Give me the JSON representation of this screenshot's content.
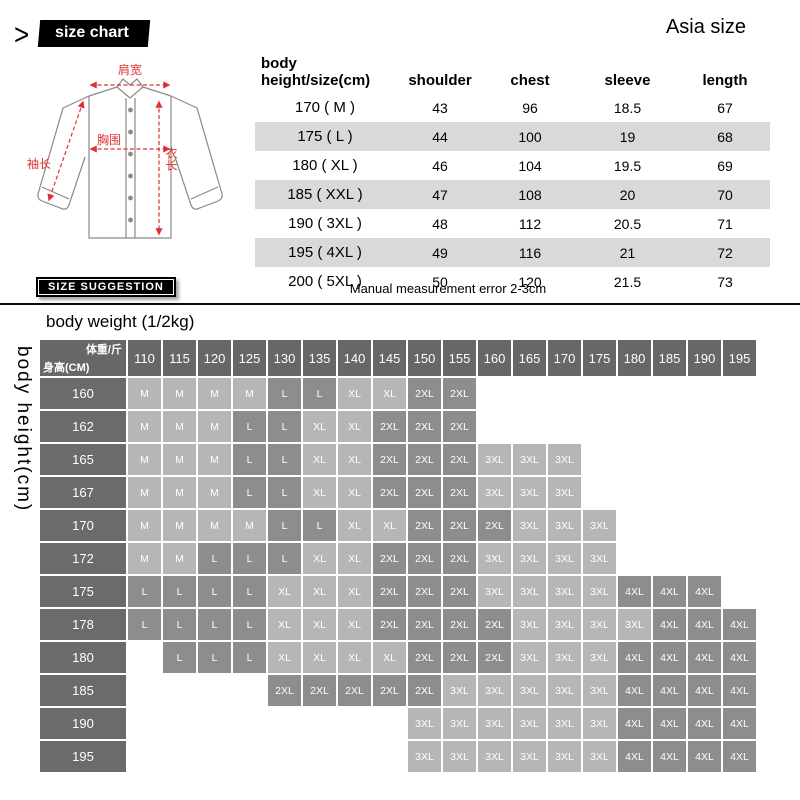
{
  "header": {
    "arrow_glyph": ">",
    "badge_label": "size chart",
    "region_label": "Asia size"
  },
  "shirt_labels": {
    "shoulder_width": "肩宽",
    "chest": "胸围",
    "garment_length": "衣长",
    "sleeve_length": "袖长"
  },
  "suggestion_badge_label": "SIZE SUGGESTION",
  "size_table_header": {
    "line1": "body",
    "line2": "height/size(cm)",
    "columns": [
      "shoulder",
      "chest",
      "sleeve",
      "length"
    ]
  },
  "weight_matrix_labels": {
    "section_title": "body weight (1/2kg)",
    "side_label": "body height(cm)",
    "corner_weight": "体重/斤",
    "corner_height": "身高(CM)"
  },
  "colors": {
    "accent_red": "#e03131",
    "matrix_header_gray": "#676767",
    "matrix_dark_cell": "#8d8d8d",
    "matrix_light_cell": "#b6b6b6",
    "table_stripe": "#d9d9d9",
    "badge_black": "#000000"
  },
  "chart_data": [
    {
      "type": "table",
      "title": "Asia size body measurements (cm)",
      "columns": [
        "body height/size(cm)",
        "shoulder",
        "chest",
        "sleeve",
        "length"
      ],
      "rows": [
        [
          "170 ( M )",
          43,
          96,
          18.5,
          67
        ],
        [
          "175 ( L )",
          44,
          100,
          19,
          68
        ],
        [
          "180 ( XL )",
          46,
          104,
          19.5,
          69
        ],
        [
          "185 ( XXL )",
          47,
          108,
          20,
          70
        ],
        [
          "190 ( 3XL )",
          48,
          112,
          20.5,
          71
        ],
        [
          "195 ( 4XL )",
          49,
          116,
          21,
          72
        ],
        [
          "200 ( 5XL )",
          50,
          120,
          21.5,
          73
        ]
      ],
      "note": "Manual measurement error 2-3cm"
    },
    {
      "type": "heatmap",
      "title": "body weight (1/2kg)",
      "xlabel": "body weight (1/2kg)",
      "ylabel": "body height(cm)",
      "x": [
        "110",
        "115",
        "120",
        "125",
        "130",
        "135",
        "140",
        "145",
        "150",
        "155",
        "160",
        "165",
        "170",
        "175",
        "180",
        "185",
        "190",
        "195"
      ],
      "y": [
        "160",
        "162",
        "165",
        "167",
        "170",
        "172",
        "175",
        "178",
        "180",
        "185",
        "190",
        "195"
      ],
      "shade_dark_sizes": [
        "L",
        "2XL",
        "4XL"
      ],
      "cells": [
        [
          "M",
          "M",
          "M",
          "M",
          "L",
          "L",
          "XL",
          "XL",
          "2XL",
          "2XL",
          "",
          "",
          "",
          "",
          "",
          "",
          "",
          ""
        ],
        [
          "M",
          "M",
          "M",
          "L",
          "L",
          "XL",
          "XL",
          "2XL",
          "2XL",
          "2XL",
          "",
          "",
          "",
          "",
          "",
          "",
          "",
          ""
        ],
        [
          "M",
          "M",
          "M",
          "L",
          "L",
          "XL",
          "XL",
          "2XL",
          "2XL",
          "2XL",
          "3XL",
          "3XL",
          "3XL",
          "",
          "",
          "",
          "",
          ""
        ],
        [
          "M",
          "M",
          "M",
          "L",
          "L",
          "XL",
          "XL",
          "2XL",
          "2XL",
          "2XL",
          "3XL",
          "3XL",
          "3XL",
          "",
          "",
          "",
          "",
          ""
        ],
        [
          "M",
          "M",
          "M",
          "M",
          "L",
          "L",
          "XL",
          "XL",
          "2XL",
          "2XL",
          "2XL",
          "3XL",
          "3XL",
          "3XL",
          "",
          "",
          "",
          ""
        ],
        [
          "M",
          "M",
          "L",
          "L",
          "L",
          "XL",
          "XL",
          "2XL",
          "2XL",
          "2XL",
          "3XL",
          "3XL",
          "3XL",
          "3XL",
          "",
          "",
          "",
          ""
        ],
        [
          "L",
          "L",
          "L",
          "L",
          "XL",
          "XL",
          "XL",
          "2XL",
          "2XL",
          "2XL",
          "3XL",
          "3XL",
          "3XL",
          "3XL",
          "4XL",
          "4XL",
          "4XL",
          ""
        ],
        [
          "L",
          "L",
          "L",
          "L",
          "XL",
          "XL",
          "XL",
          "2XL",
          "2XL",
          "2XL",
          "2XL",
          "3XL",
          "3XL",
          "3XL",
          "3XL",
          "4XL",
          "4XL",
          "4XL"
        ],
        [
          "",
          "L",
          "L",
          "L",
          "XL",
          "XL",
          "XL",
          "XL",
          "2XL",
          "2XL",
          "2XL",
          "3XL",
          "3XL",
          "3XL",
          "4XL",
          "4XL",
          "4XL",
          "4XL"
        ],
        [
          "",
          "",
          "",
          "",
          "2XL",
          "2XL",
          "2XL",
          "2XL",
          "2XL",
          "3XL",
          "3XL",
          "3XL",
          "3XL",
          "3XL",
          "4XL",
          "4XL",
          "4XL",
          "4XL"
        ],
        [
          "",
          "",
          "",
          "",
          "",
          "",
          "",
          "",
          "3XL",
          "3XL",
          "3XL",
          "3XL",
          "3XL",
          "3XL",
          "4XL",
          "4XL",
          "4XL",
          "4XL"
        ],
        [
          "",
          "",
          "",
          "",
          "",
          "",
          "",
          "",
          "3XL",
          "3XL",
          "3XL",
          "3XL",
          "3XL",
          "3XL",
          "4XL",
          "4XL",
          "4XL",
          "4XL"
        ]
      ]
    }
  ]
}
